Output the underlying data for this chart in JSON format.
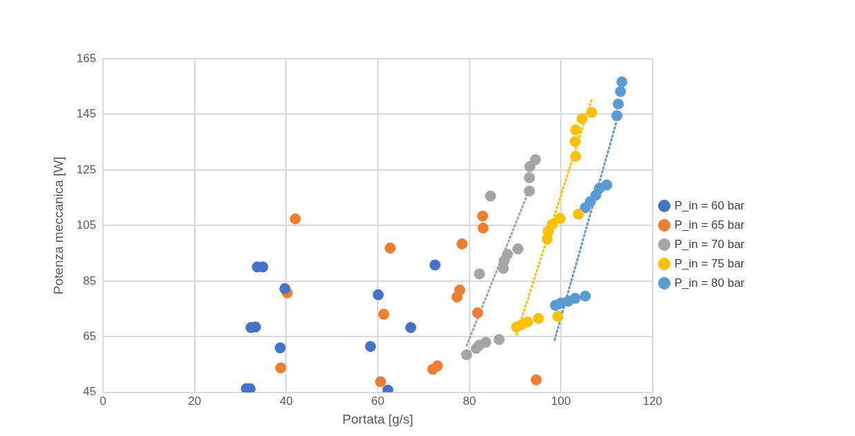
{
  "chart_data": {
    "type": "scatter",
    "xlabel": "Portata [g/s]",
    "ylabel": "Potenza meccanica [W]",
    "xlim": [
      0,
      120
    ],
    "xticks": [
      0,
      20,
      40,
      60,
      80,
      100,
      120
    ],
    "ylim": [
      45,
      165
    ],
    "yticks": [
      45,
      65,
      85,
      105,
      125,
      145,
      165
    ],
    "grid": true,
    "legend": "right",
    "series": [
      {
        "name": "P_in = 60 bar",
        "marker": "circle",
        "color": "#4472c4",
        "x": [
          31.3,
          32.1,
          32.3,
          33.3,
          33.7,
          34.9,
          39.7,
          38.7,
          60.1,
          58.4,
          72.5,
          67.2,
          62.2
        ],
        "values": [
          46.3,
          46.3,
          68.3,
          68.5,
          90.1,
          90.1,
          82.3,
          61.0,
          80.1,
          61.5,
          90.8,
          68.3,
          45.8
        ]
      },
      {
        "name": "P_in = 65 bar",
        "marker": "circle",
        "color": "#ed7d31",
        "x": [
          42.0,
          40.2,
          38.8,
          62.7,
          61.3,
          60.6,
          72.0,
          73.0,
          78.4,
          77.9,
          77.3,
          81.8,
          82.9,
          83.0,
          94.6
        ],
        "values": [
          107.4,
          80.8,
          53.8,
          96.9,
          73.1,
          48.8,
          53.3,
          54.5,
          98.4,
          81.8,
          79.3,
          73.6,
          108.4,
          104.1,
          49.5
        ]
      },
      {
        "name": "P_in = 70 bar",
        "marker": "circle",
        "color": "#a5a5a5",
        "x": [
          79.4,
          81.5,
          82.2,
          83.6,
          86.5,
          82.2,
          87.4,
          87.6,
          88.3,
          90.6,
          84.6,
          93.1,
          93.1,
          93.2,
          94.4
        ],
        "values": [
          58.5,
          60.8,
          62.0,
          63.0,
          64.0,
          87.6,
          89.6,
          92.3,
          94.6,
          96.6,
          115.6,
          117.4,
          122.2,
          126.2,
          128.7
        ]
      },
      {
        "name": "P_in = 75 bar",
        "marker": "circle",
        "color": "#ffc000",
        "x": [
          90.3,
          91.3,
          92.7,
          95.1,
          99.3,
          97.0,
          97.2,
          98.1,
          99.8,
          103.8,
          103.2,
          103.1,
          103.2,
          104.6,
          106.7
        ],
        "values": [
          68.5,
          69.3,
          70.3,
          71.6,
          72.3,
          100.1,
          102.9,
          105.4,
          107.6,
          109.1,
          129.9,
          135.2,
          139.4,
          143.4,
          145.7
        ]
      },
      {
        "name": "P_in = 80 bar",
        "marker": "circle",
        "color": "#5b9bd5",
        "x": [
          98.8,
          100.0,
          101.6,
          103.1,
          105.3,
          105.3,
          106.4,
          107.6,
          108.4,
          110.0,
          112.2,
          112.5,
          113.0,
          113.3
        ],
        "values": [
          76.3,
          77.1,
          77.8,
          78.8,
          79.6,
          111.4,
          113.6,
          115.9,
          118.4,
          119.6,
          144.5,
          148.7,
          153.2,
          156.7
        ]
      },
      {
        "type": "line",
        "line_style": "dotted",
        "marker": "none",
        "color": "#a5a5a5",
        "x": [
          79.4,
          93.2
        ],
        "values": [
          61.8,
          118.4
        ]
      },
      {
        "type": "line",
        "line_style": "dotted",
        "marker": "none",
        "color": "#ffc000",
        "x": [
          90.3,
          106.7
        ],
        "values": [
          65.8,
          150.5
        ]
      },
      {
        "type": "line",
        "line_style": "dotted",
        "marker": "none",
        "color": "#5b9bd5",
        "x": [
          98.6,
          112.1
        ],
        "values": [
          63.8,
          142.2
        ]
      }
    ]
  }
}
